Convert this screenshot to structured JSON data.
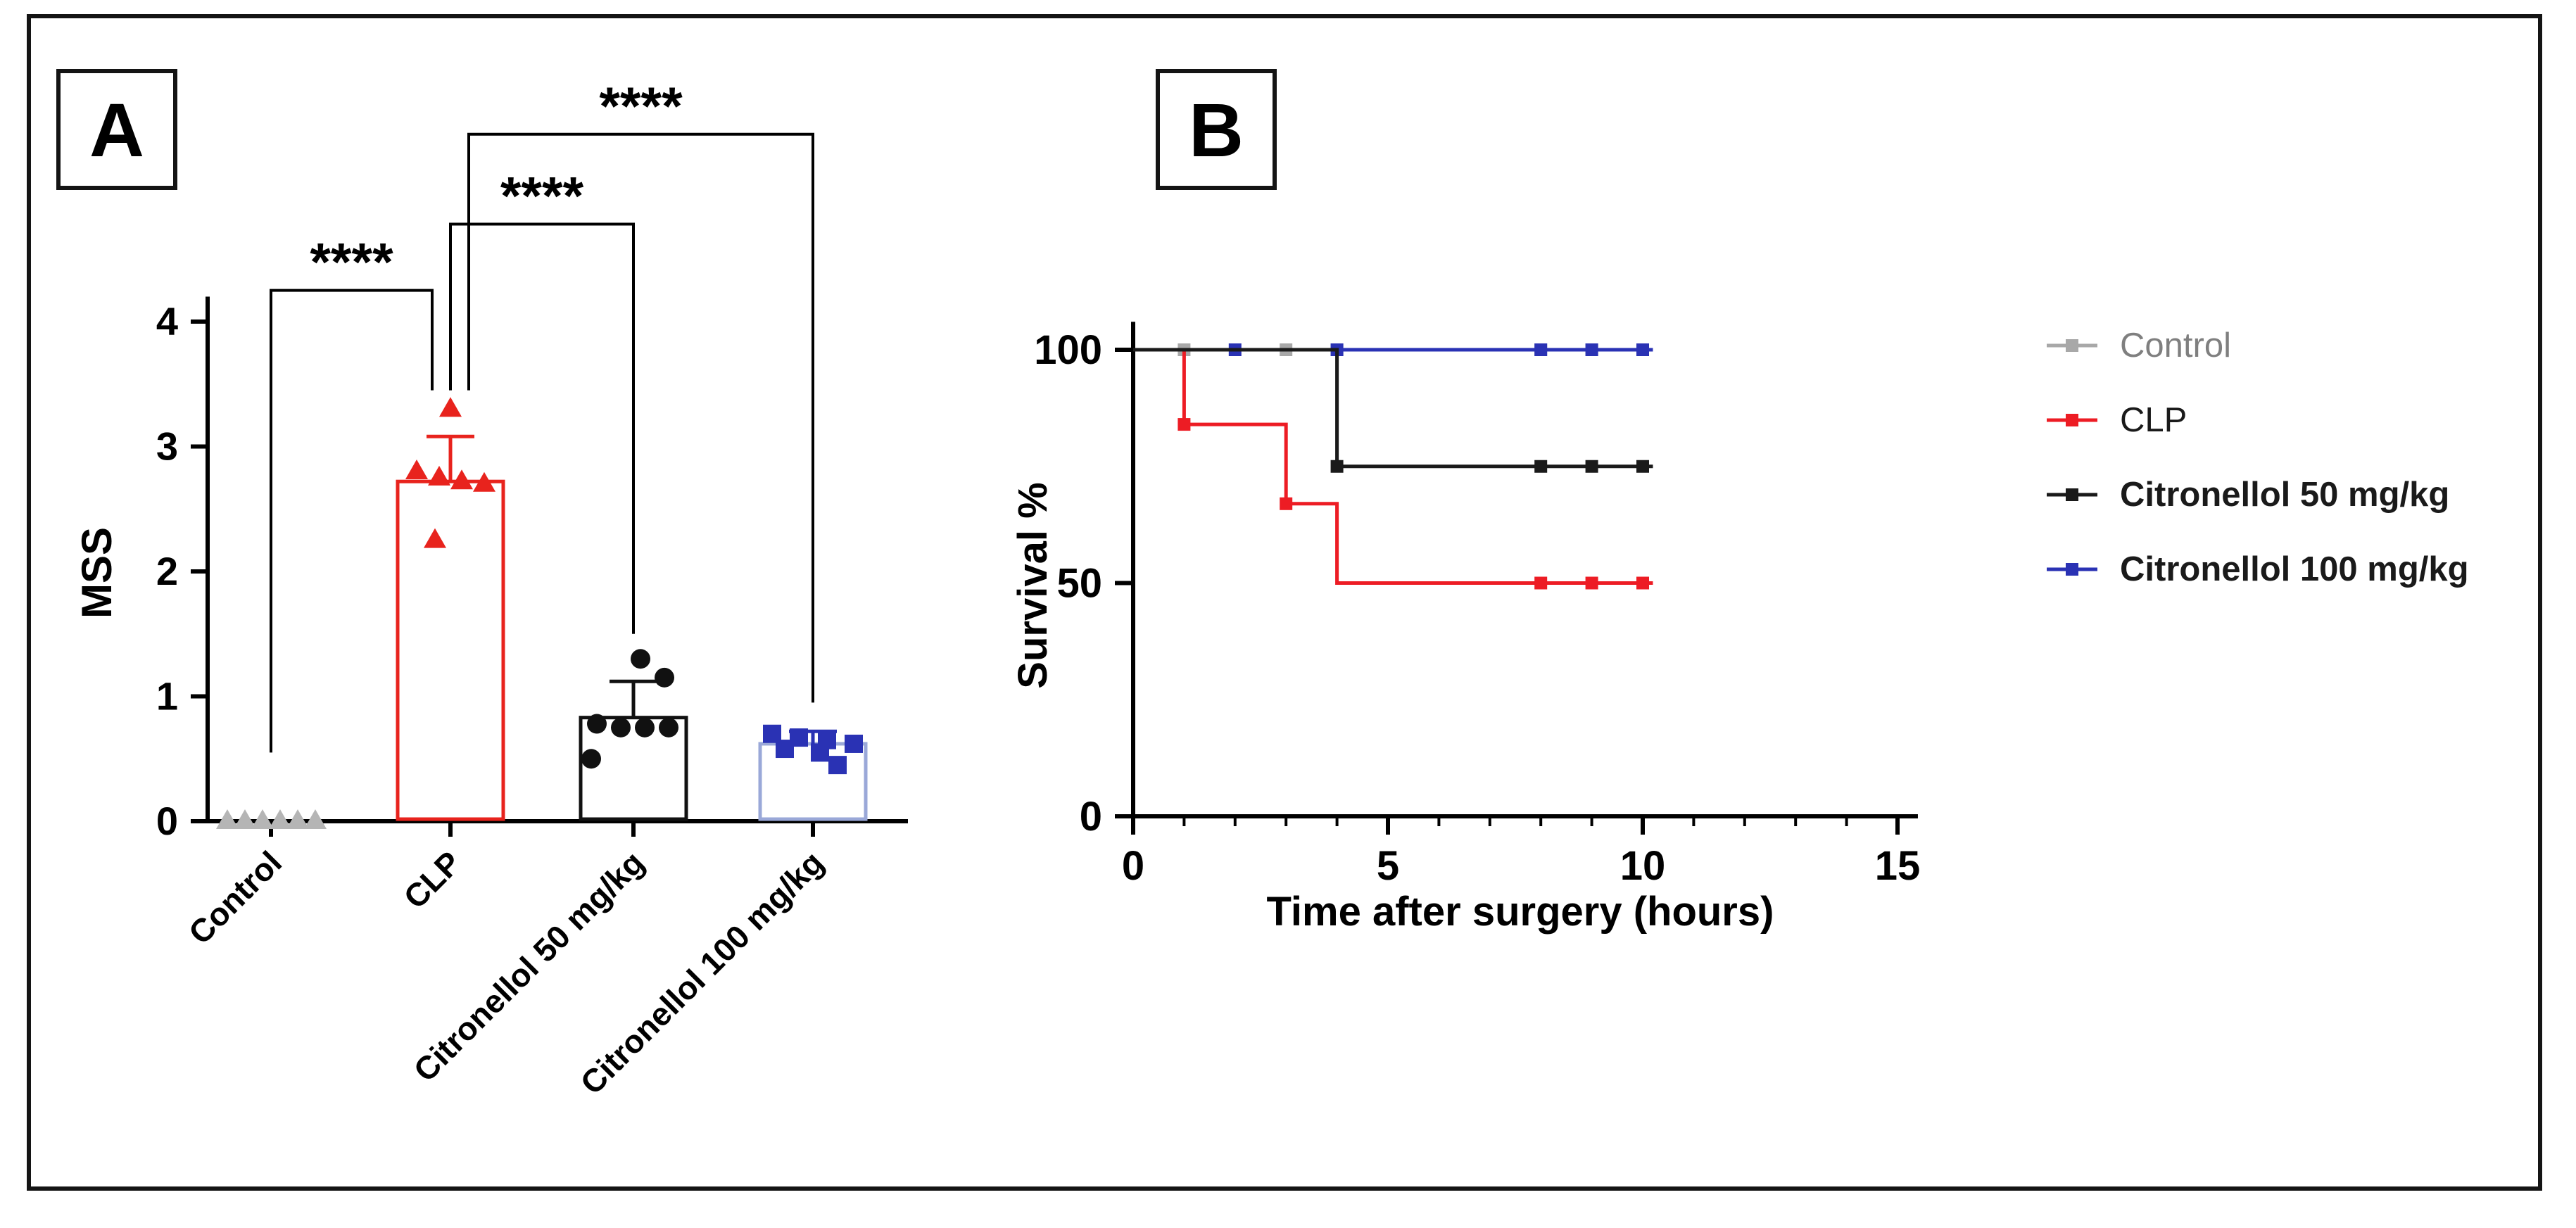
{
  "figure": {
    "panels": [
      {
        "label": "A"
      },
      {
        "label": "B"
      }
    ]
  },
  "chart_data": [
    {
      "type": "scatter",
      "panel": "A",
      "title": "",
      "xlabel": "",
      "ylabel": "MSS",
      "ylim": [
        0,
        4
      ],
      "yticks": [
        0,
        1,
        2,
        3,
        4
      ],
      "grid": false,
      "categories": [
        "Control",
        "CLP",
        "Citronellol 50 mg/kg",
        "Citronellol 100 mg/kg"
      ],
      "groups": [
        {
          "name": "Control",
          "marker": "triangle",
          "color": "#b5b5b5",
          "bar_color": "#b5b5b5",
          "mean": 0.02,
          "sd_top": 0.04,
          "values": [
            0,
            0,
            0,
            0,
            0,
            0
          ],
          "jitter": [
            -62,
            -37,
            -12,
            13,
            38,
            63
          ]
        },
        {
          "name": "CLP",
          "marker": "triangle",
          "color": "#e8231d",
          "bar_color": "#e8231d",
          "mean": 2.72,
          "sd_top": 3.08,
          "values": [
            3.3,
            2.8,
            2.75,
            2.72,
            2.7,
            2.25
          ],
          "jitter": [
            0,
            -48,
            -16,
            16,
            48,
            -22
          ]
        },
        {
          "name": "Citronellol 50 mg/kg",
          "marker": "circle",
          "color": "#111111",
          "bar_color": "#111111",
          "mean": 0.83,
          "sd_top": 1.12,
          "values": [
            1.3,
            1.15,
            0.78,
            0.75,
            0.75,
            0.75,
            0.5
          ],
          "jitter": [
            10,
            44,
            -52,
            -18,
            16,
            50,
            -60
          ]
        },
        {
          "name": "Citronellol 100 mg/kg",
          "marker": "square",
          "color": "#2a32b4",
          "bar_color": "#9aa8d8",
          "mean": 0.62,
          "sd_top": 0.72,
          "values": [
            0.7,
            0.67,
            0.65,
            0.62,
            0.58,
            0.55,
            0.45
          ],
          "jitter": [
            -58,
            -20,
            20,
            58,
            -40,
            10,
            35
          ]
        }
      ],
      "significance": [
        {
          "group1": 0,
          "group2": 1,
          "bar_y": 4.25,
          "leg1_y": 0.55,
          "leg2_y": 3.45,
          "x1_offset": 0,
          "x2_offset": -26,
          "label": "****"
        },
        {
          "group1": 1,
          "group2": 2,
          "bar_y": 4.78,
          "leg1_y": 3.45,
          "leg2_y": 1.5,
          "x1_offset": 0,
          "x2_offset": 0,
          "label": "****"
        },
        {
          "group1": 1,
          "group2": 3,
          "bar_y": 5.5,
          "leg1_y": 3.45,
          "leg2_y": 0.95,
          "x1_offset": 26,
          "x2_offset": 0,
          "label": "****"
        }
      ]
    },
    {
      "type": "line",
      "subtype": "kaplan-meier",
      "panel": "B",
      "title": "",
      "xlabel": "Time after surgery (hours)",
      "ylabel": "Survival %",
      "xlim": [
        0,
        15
      ],
      "ylim": [
        0,
        100
      ],
      "xticks": [
        0,
        5,
        10,
        15
      ],
      "yticks": [
        0,
        50,
        100
      ],
      "grid": false,
      "legend_position": "right",
      "series": [
        {
          "name": "Control",
          "color": "#a8a8a8",
          "steps": [
            [
              0,
              100
            ],
            [
              10.2,
              100
            ]
          ],
          "markers": [
            [
              1,
              100
            ],
            [
              3,
              100
            ],
            [
              4,
              100
            ],
            [
              8,
              100
            ],
            [
              9,
              100
            ],
            [
              10,
              100
            ]
          ]
        },
        {
          "name": "Citronellol 100 mg/kg",
          "color": "#2a32b4",
          "steps": [
            [
              0,
              100
            ],
            [
              10.2,
              100
            ]
          ],
          "markers": [
            [
              2,
              100
            ],
            [
              4,
              100
            ],
            [
              8,
              100
            ],
            [
              9,
              100
            ],
            [
              10,
              100
            ]
          ]
        },
        {
          "name": "CLP",
          "color": "#ed1c24",
          "steps": [
            [
              0,
              100
            ],
            [
              1,
              100
            ],
            [
              1,
              84
            ],
            [
              3,
              84
            ],
            [
              3,
              67
            ],
            [
              4,
              67
            ],
            [
              4,
              50
            ],
            [
              10.2,
              50
            ]
          ],
          "markers": [
            [
              1,
              84
            ],
            [
              3,
              67
            ],
            [
              8,
              50
            ],
            [
              9,
              50
            ],
            [
              10,
              50
            ]
          ]
        },
        {
          "name": "Citronellol 50 mg/kg",
          "color": "#1a1a1a",
          "steps": [
            [
              0,
              100
            ],
            [
              4,
              100
            ],
            [
              4,
              75
            ],
            [
              10.2,
              75
            ]
          ],
          "markers": [
            [
              4,
              75
            ],
            [
              8,
              75
            ],
            [
              9,
              75
            ],
            [
              10,
              75
            ]
          ]
        }
      ],
      "legend": [
        {
          "label": "Control",
          "color": "#a8a8a8",
          "text_color": "#7f7f7f",
          "bold": false
        },
        {
          "label": "CLP",
          "color": "#ed1c24",
          "text_color": "#1a1a1a",
          "bold": false
        },
        {
          "label": "Citronellol 50 mg/kg",
          "color": "#1a1a1a",
          "text_color": "#1a1a1a",
          "bold": true
        },
        {
          "label": "Citronellol 100 mg/kg",
          "color": "#2a32b4",
          "text_color": "#1a1a1a",
          "bold": true
        }
      ]
    }
  ]
}
